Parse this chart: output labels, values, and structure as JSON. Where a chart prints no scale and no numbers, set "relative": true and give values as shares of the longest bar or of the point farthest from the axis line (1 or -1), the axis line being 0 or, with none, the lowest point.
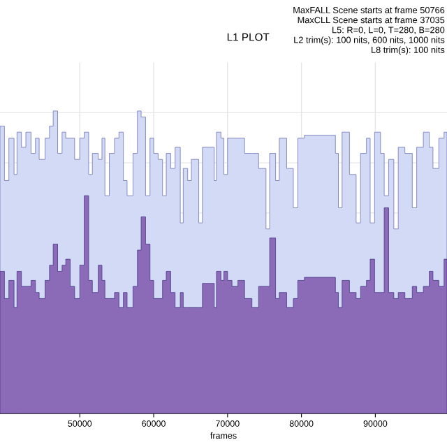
{
  "chart_data": {
    "type": "area",
    "title": "L1 PLOT",
    "xlabel": "frames",
    "relative": true,
    "grid": true,
    "legend": false,
    "annotations": [
      "MaxFALL Scene starts at frame 50766",
      "MaxCLL Scene starts at frame 37035",
      "L5: R=0, L=0, T=280, B=280",
      "L2 trim(s): 100 nits, 600 nits, 1000 nits",
      "L8 trim(s): 100 nits"
    ],
    "xlim": [
      39200,
      99700
    ],
    "xticks": [
      50000,
      60000,
      70000,
      80000,
      90000
    ],
    "x": [
      39200,
      39800,
      40400,
      41100,
      41500,
      42100,
      42700,
      43400,
      44000,
      44500,
      45300,
      45900,
      46400,
      47000,
      47600,
      48100,
      48700,
      49300,
      50000,
      50600,
      51200,
      51700,
      52500,
      53000,
      53400,
      54000,
      54700,
      55300,
      55900,
      56400,
      57200,
      57800,
      58300,
      58900,
      59500,
      60000,
      60600,
      61200,
      61700,
      62300,
      62900,
      63600,
      64000,
      64600,
      65100,
      66100,
      66600,
      67600,
      68200,
      68500,
      69100,
      69500,
      70000,
      70600,
      71400,
      72300,
      73300,
      74200,
      75200,
      75700,
      76500,
      77000,
      78000,
      78900,
      79500,
      80400,
      84000,
      84600,
      85000,
      85500,
      86500,
      87400,
      88000,
      88800,
      89300,
      89900,
      90700,
      91200,
      91800,
      92500,
      93100,
      94000,
      95000,
      95600,
      96500,
      97300,
      97800,
      98600,
      99300,
      99700
    ],
    "series": [
      {
        "color": "#d2daf6",
        "values": [
          0.95,
          0.77,
          0.91,
          0.79,
          0.93,
          0.88,
          0.93,
          0.86,
          0.91,
          0.84,
          0.91,
          0.95,
          1.0,
          0.86,
          0.93,
          0.91,
          0.91,
          0.84,
          0.91,
          0.93,
          0.79,
          0.86,
          0.84,
          0.91,
          0.72,
          0.86,
          0.91,
          0.93,
          0.77,
          0.72,
          0.86,
          1.0,
          0.98,
          0.72,
          0.91,
          0.86,
          0.84,
          0.72,
          0.86,
          0.81,
          0.88,
          0.63,
          0.81,
          0.77,
          0.84,
          0.63,
          0.88,
          0.88,
          0.77,
          0.93,
          0.91,
          0.79,
          0.91,
          0.91,
          0.91,
          0.86,
          0.86,
          0.81,
          0.61,
          0.86,
          0.77,
          0.91,
          0.81,
          0.68,
          0.91,
          0.92,
          0.92,
          0.86,
          0.68,
          0.93,
          0.79,
          0.63,
          0.86,
          0.91,
          0.63,
          0.93,
          0.86,
          0.72,
          0.84,
          0.61,
          0.88,
          0.86,
          0.68,
          0.88,
          0.93,
          0.88,
          0.81,
          0.91,
          0.93,
          0.91
        ]
      },
      {
        "color": "#8b6bb8",
        "values": [
          0.47,
          0.38,
          0.44,
          0.35,
          0.47,
          0.42,
          0.42,
          0.44,
          0.4,
          0.38,
          0.44,
          0.49,
          0.56,
          0.47,
          0.49,
          0.51,
          0.42,
          0.38,
          0.49,
          0.72,
          0.44,
          0.4,
          0.49,
          0.44,
          0.38,
          0.38,
          0.4,
          0.35,
          0.4,
          0.35,
          0.42,
          0.54,
          0.65,
          0.56,
          0.44,
          0.38,
          0.38,
          0.44,
          0.47,
          0.4,
          0.35,
          0.4,
          0.35,
          0.35,
          0.35,
          0.35,
          0.43,
          0.43,
          0.35,
          0.47,
          0.44,
          0.47,
          0.44,
          0.42,
          0.44,
          0.38,
          0.35,
          0.42,
          0.42,
          0.58,
          0.38,
          0.4,
          0.35,
          0.38,
          0.44,
          0.45,
          0.45,
          0.4,
          0.35,
          0.44,
          0.4,
          0.38,
          0.42,
          0.44,
          0.51,
          0.4,
          0.4,
          0.68,
          0.4,
          0.38,
          0.4,
          0.38,
          0.42,
          0.4,
          0.42,
          0.47,
          0.44,
          0.42,
          0.51,
          0.47
        ]
      }
    ]
  }
}
